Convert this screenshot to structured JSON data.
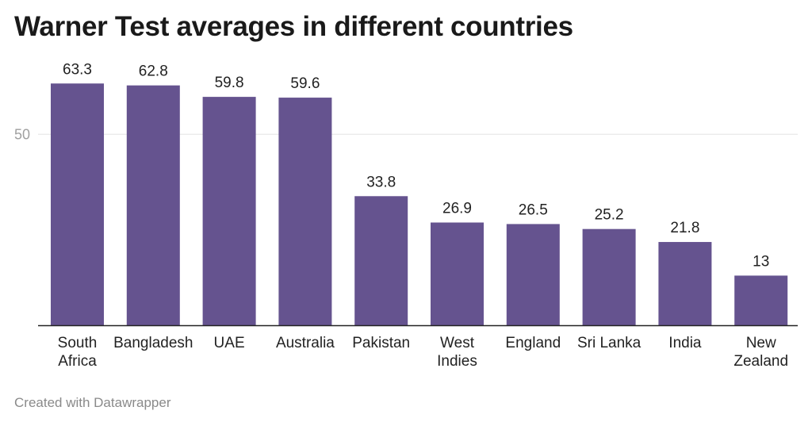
{
  "chart_data": {
    "type": "bar",
    "title": "Warner Test averages in different countries",
    "categories": [
      "South Africa",
      "Bangladesh",
      "UAE",
      "Australia",
      "Pakistan",
      "West Indies",
      "England",
      "Sri Lanka",
      "India",
      "New Zealand"
    ],
    "category_lines": [
      [
        "South",
        "Africa"
      ],
      [
        "Bangladesh"
      ],
      [
        "UAE"
      ],
      [
        "Australia"
      ],
      [
        "Pakistan"
      ],
      [
        "West",
        "Indies"
      ],
      [
        "England"
      ],
      [
        "Sri Lanka"
      ],
      [
        "India"
      ],
      [
        "New",
        "Zealand"
      ]
    ],
    "values": [
      63.3,
      62.8,
      59.8,
      59.6,
      33.8,
      26.9,
      26.5,
      25.2,
      21.8,
      13
    ],
    "value_labels": [
      "63.3",
      "62.8",
      "59.8",
      "59.6",
      "33.8",
      "26.9",
      "26.5",
      "25.2",
      "21.8",
      "13"
    ],
    "ylim": [
      0,
      70
    ],
    "yticks": [
      50
    ],
    "ytick_labels": [
      "50"
    ],
    "xlabel": "",
    "ylabel": "",
    "grid": true,
    "bar_color": "#65538f"
  },
  "footer": {
    "credit": "Created with Datawrapper"
  }
}
